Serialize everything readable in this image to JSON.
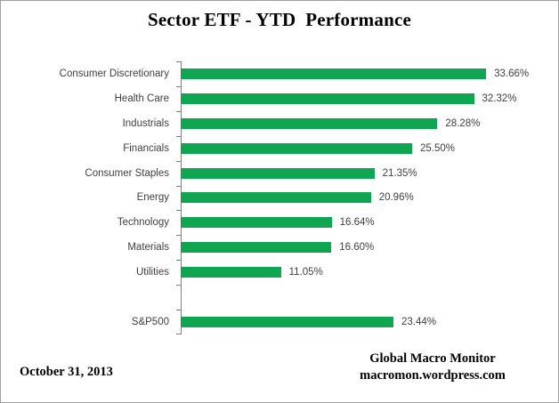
{
  "title": "Sector ETF - YTD  Performance",
  "chart_data": {
    "type": "bar",
    "orientation": "horizontal",
    "title": "Sector ETF - YTD  Performance",
    "categories": [
      "Consumer Discretionary",
      "Health Care",
      "Industrials",
      "Financials",
      "Consumer Staples",
      "Energy",
      "Technology",
      "Materials",
      "Utilities",
      "",
      "S&P500"
    ],
    "values": [
      33.66,
      32.32,
      28.28,
      25.5,
      21.35,
      20.96,
      16.64,
      16.6,
      11.05,
      null,
      23.44
    ],
    "value_labels": [
      "33.66%",
      "32.32%",
      "28.28%",
      "25.50%",
      "21.35%",
      "20.96%",
      "16.64%",
      "16.60%",
      "11.05%",
      "",
      "23.44%"
    ],
    "xlabel": "",
    "ylabel": "",
    "xlim": [
      0,
      41
    ],
    "grid": false,
    "legend": false,
    "bar_color": "#10A651",
    "axis_color": "#808080",
    "label_color": "#404040"
  },
  "footer": {
    "date": "October 31, 2013",
    "attribution_line1": "Global Macro Monitor",
    "attribution_line2": "macromon.wordpress.com"
  }
}
